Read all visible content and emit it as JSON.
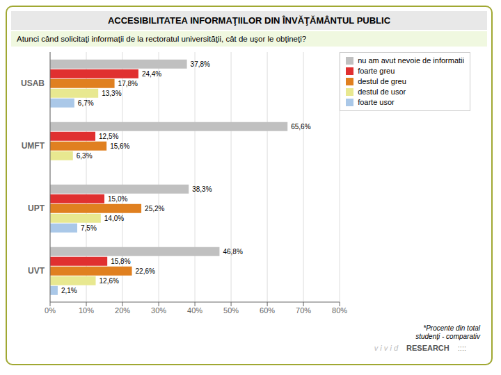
{
  "chart_data": {
    "type": "bar",
    "orientation": "horizontal",
    "title": "ACCESIBILITATEA INFORMAŢIILOR DIN ÎNVĂŢĂMÂNTUL PUBLIC",
    "subtitle": "Atunci când solicitaţi informaţii de la rectoratul universităţii, cât de uşor le obţineţi?",
    "categories": [
      "USAB",
      "UMFT",
      "UPT",
      "UVT"
    ],
    "series": [
      {
        "name": "nu am avut nevoie de informatii",
        "color": "#c0c0c0",
        "values": [
          37.8,
          65.6,
          38.3,
          46.8
        ],
        "value_labels": [
          "37,8%",
          "65,6%",
          "38,3%",
          "46,8%"
        ]
      },
      {
        "name": "foarte greu",
        "color": "#e03030",
        "values": [
          24.4,
          12.5,
          15.0,
          15.8
        ],
        "value_labels": [
          "24,4%",
          "12,5%",
          "15,0%",
          "15,8%"
        ]
      },
      {
        "name": "destul de greu",
        "color": "#e08020",
        "values": [
          17.8,
          15.6,
          25.2,
          22.6
        ],
        "value_labels": [
          "17,8%",
          "15,6%",
          "25,2%",
          "22,6%"
        ]
      },
      {
        "name": "destul de usor",
        "color": "#e8e890",
        "values": [
          13.3,
          6.3,
          14.0,
          12.6
        ],
        "value_labels": [
          "13,3%",
          "6,3%",
          "14,0%",
          "12,6%"
        ]
      },
      {
        "name": "foarte usor",
        "color": "#aac8e8",
        "values": [
          6.7,
          0.0,
          7.5,
          2.1
        ],
        "value_labels": [
          "6,7%",
          null,
          "7,5%",
          "2,1%"
        ]
      }
    ],
    "xlim": [
      0,
      80
    ],
    "xticks": [
      {
        "value": 0,
        "label": "0%"
      },
      {
        "value": 10,
        "label": "10%"
      },
      {
        "value": 20,
        "label": "20%"
      },
      {
        "value": 30,
        "label": "30%"
      },
      {
        "value": 40,
        "label": "40%"
      },
      {
        "value": 50,
        "label": "50%"
      },
      {
        "value": 60,
        "label": "60%"
      },
      {
        "value": 70,
        "label": "70%"
      },
      {
        "value": 80,
        "label": "80%"
      }
    ],
    "grid": true,
    "legend": "upper right",
    "data_labels": true,
    "annotations": [
      "*Procente din total",
      "studenţi - comparativ",
      "v i v i d",
      "RESEARCH",
      "::::"
    ]
  }
}
